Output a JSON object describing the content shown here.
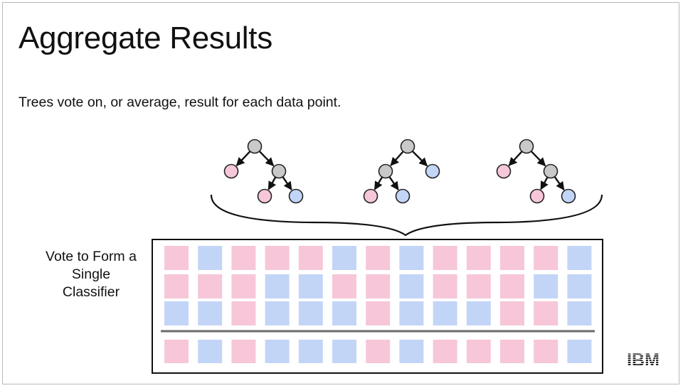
{
  "slide": {
    "title": "Aggregate Results",
    "subtitle": "Trees vote on, or average, result for each data point.",
    "vote_label_lines": [
      "Vote to Form a",
      "Single",
      "Classifier"
    ],
    "logo_text": "IBM"
  },
  "colors": {
    "pink": "#f7c6d9",
    "blue": "#c3d5f7",
    "node_gray": "#c9c9c9",
    "node_stroke": "#222222",
    "divider": "#6b6b6b"
  },
  "trees": [
    {
      "name": "tree-1",
      "leaves": [
        "pink",
        "pink",
        "blue"
      ]
    },
    {
      "name": "tree-2",
      "leaves": [
        "pink",
        "blue",
        "blue"
      ]
    },
    {
      "name": "tree-3",
      "leaves": [
        "pink",
        "pink",
        "blue"
      ]
    }
  ],
  "vote_grid": [
    [
      "pink",
      "blue",
      "pink",
      "pink",
      "pink",
      "blue",
      "pink",
      "blue",
      "pink",
      "pink",
      "pink",
      "pink",
      "blue"
    ],
    [
      "pink",
      "pink",
      "pink",
      "blue",
      "blue",
      "pink",
      "pink",
      "blue",
      "pink",
      "pink",
      "pink",
      "blue",
      "blue"
    ],
    [
      "blue",
      "blue",
      "pink",
      "blue",
      "blue",
      "blue",
      "pink",
      "blue",
      "blue",
      "blue",
      "pink",
      "pink",
      "blue"
    ]
  ],
  "result_row": [
    "pink",
    "blue",
    "pink",
    "blue",
    "blue",
    "blue",
    "pink",
    "blue",
    "pink",
    "pink",
    "pink",
    "pink",
    "blue"
  ]
}
